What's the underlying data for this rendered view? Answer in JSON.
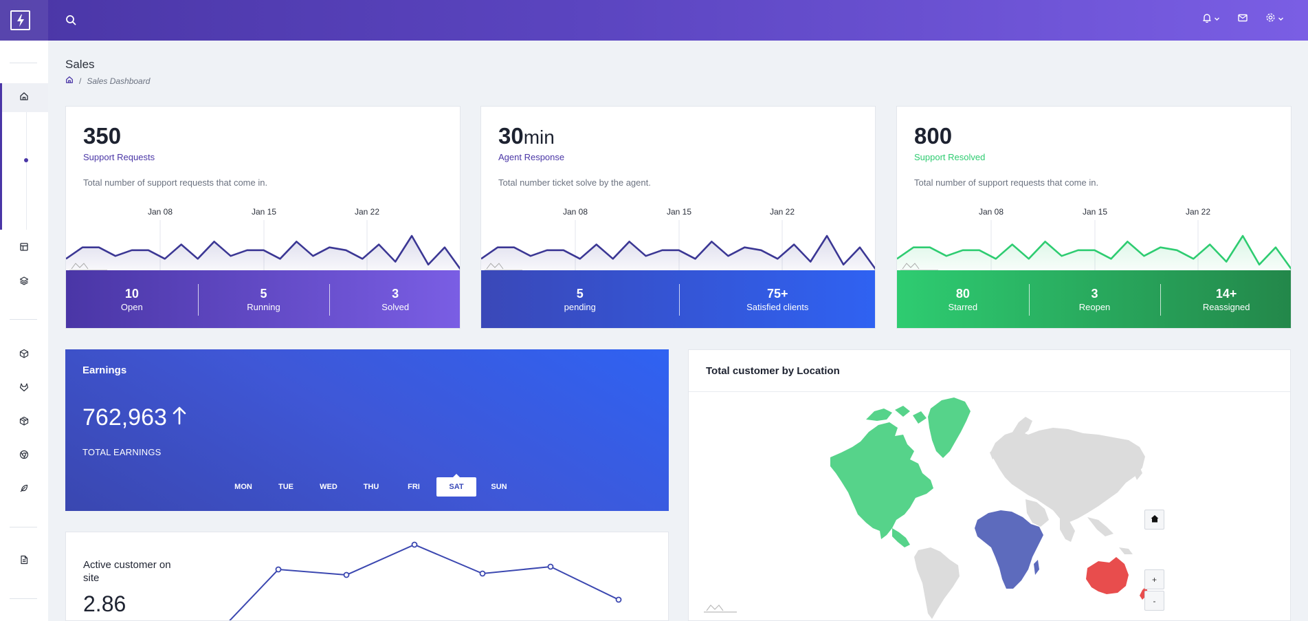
{
  "header": {
    "logo_icon": "lightning-bolt-icon",
    "search_icon": "search-icon",
    "actions": [
      {
        "icon": "bell-icon",
        "dropdown": true
      },
      {
        "icon": "mail-icon",
        "dropdown": false
      },
      {
        "icon": "gear-icon",
        "dropdown": true
      }
    ]
  },
  "sidebar": {
    "items": [
      {
        "icon": "home-icon",
        "active": true
      },
      {
        "icon": "layout-icon"
      },
      {
        "icon": "layers-icon"
      },
      {
        "icon": "box-icon"
      },
      {
        "icon": "gitlab-icon"
      },
      {
        "icon": "package-icon"
      },
      {
        "icon": "chrome-icon"
      },
      {
        "icon": "feather-icon"
      },
      {
        "icon": "file-text-icon"
      }
    ]
  },
  "page": {
    "title": "Sales",
    "breadcrumb": {
      "home_icon": "home-icon",
      "separator": "/",
      "current": "Sales Dashboard"
    }
  },
  "stats": [
    {
      "value": "350",
      "unit": "",
      "subtitle": "Support Requests",
      "subtitle_color": "#4a36a6",
      "description": "Total number of support requests that come in.",
      "ticks": [
        "Jan 08",
        "Jan 15",
        "Jan 22"
      ],
      "line_color": "#3b3794",
      "sparkline": [
        4,
        8,
        8,
        5,
        7,
        7,
        4,
        9,
        4,
        10,
        5,
        7,
        7,
        4,
        10,
        5,
        8,
        7,
        4,
        9,
        3,
        12,
        2,
        8,
        0
      ],
      "footer_gradient": [
        "#4a36a6",
        "#7a5ee4"
      ],
      "footer": [
        {
          "num": "10",
          "label": "Open"
        },
        {
          "num": "5",
          "label": "Running"
        },
        {
          "num": "3",
          "label": "Solved"
        }
      ]
    },
    {
      "value": "30",
      "unit": "min",
      "subtitle": "Agent Response",
      "subtitle_color": "#4a36a6",
      "description": "Total number ticket solve by the agent.",
      "ticks": [
        "Jan 08",
        "Jan 15",
        "Jan 22"
      ],
      "line_color": "#3b3794",
      "sparkline": [
        4,
        8,
        8,
        5,
        7,
        7,
        4,
        9,
        4,
        10,
        5,
        7,
        7,
        4,
        10,
        5,
        8,
        7,
        4,
        9,
        3,
        12,
        2,
        8,
        0
      ],
      "footer_gradient": [
        "#3a48b8",
        "#2f62f2"
      ],
      "footer": [
        {
          "num": "5",
          "label": "pending"
        },
        {
          "num": "75+",
          "label": "Satisfied clients"
        }
      ]
    },
    {
      "value": "800",
      "unit": "",
      "subtitle": "Support Resolved",
      "subtitle_color": "#2ecc71",
      "description": "Total number of support requests that come in.",
      "ticks": [
        "Jan 08",
        "Jan 15",
        "Jan 22"
      ],
      "line_color": "#2ecc71",
      "sparkline": [
        4,
        8,
        8,
        5,
        7,
        7,
        4,
        9,
        4,
        10,
        5,
        7,
        7,
        4,
        10,
        5,
        8,
        7,
        4,
        9,
        3,
        12,
        2,
        8,
        0
      ],
      "footer_gradient": [
        "#2ecc71",
        "#23874a"
      ],
      "footer": [
        {
          "num": "80",
          "label": "Starred"
        },
        {
          "num": "3",
          "label": "Reopen"
        },
        {
          "num": "14+",
          "label": "Reassigned"
        }
      ]
    }
  ],
  "earnings": {
    "title": "Earnings",
    "value": "762,963",
    "trend_icon": "arrow-up-icon",
    "label": "TOTAL EARNINGS",
    "days": [
      "MON",
      "TUE",
      "WED",
      "THU",
      "FRI",
      "SAT",
      "SUN"
    ],
    "active_day": "SAT"
  },
  "map": {
    "title": "Total customer by Location",
    "highlight_colors": {
      "north_america": "#56d38a",
      "africa": "#5d6bbd",
      "australia": "#e84d4d",
      "other": "#dcdcdc"
    },
    "controls": [
      {
        "name": "map-home-button",
        "icon": "home-icon",
        "label": ""
      },
      {
        "name": "map-zoom-in-button",
        "label": "+"
      },
      {
        "name": "map-zoom-out-button",
        "label": "-"
      }
    ]
  },
  "active_customer": {
    "title": "Active customer on site",
    "value": "2.86",
    "line_color": "#3b47b0",
    "points": [
      -1,
      4.2,
      3.8,
      6.0,
      3.9,
      4.4,
      2.0
    ]
  }
}
